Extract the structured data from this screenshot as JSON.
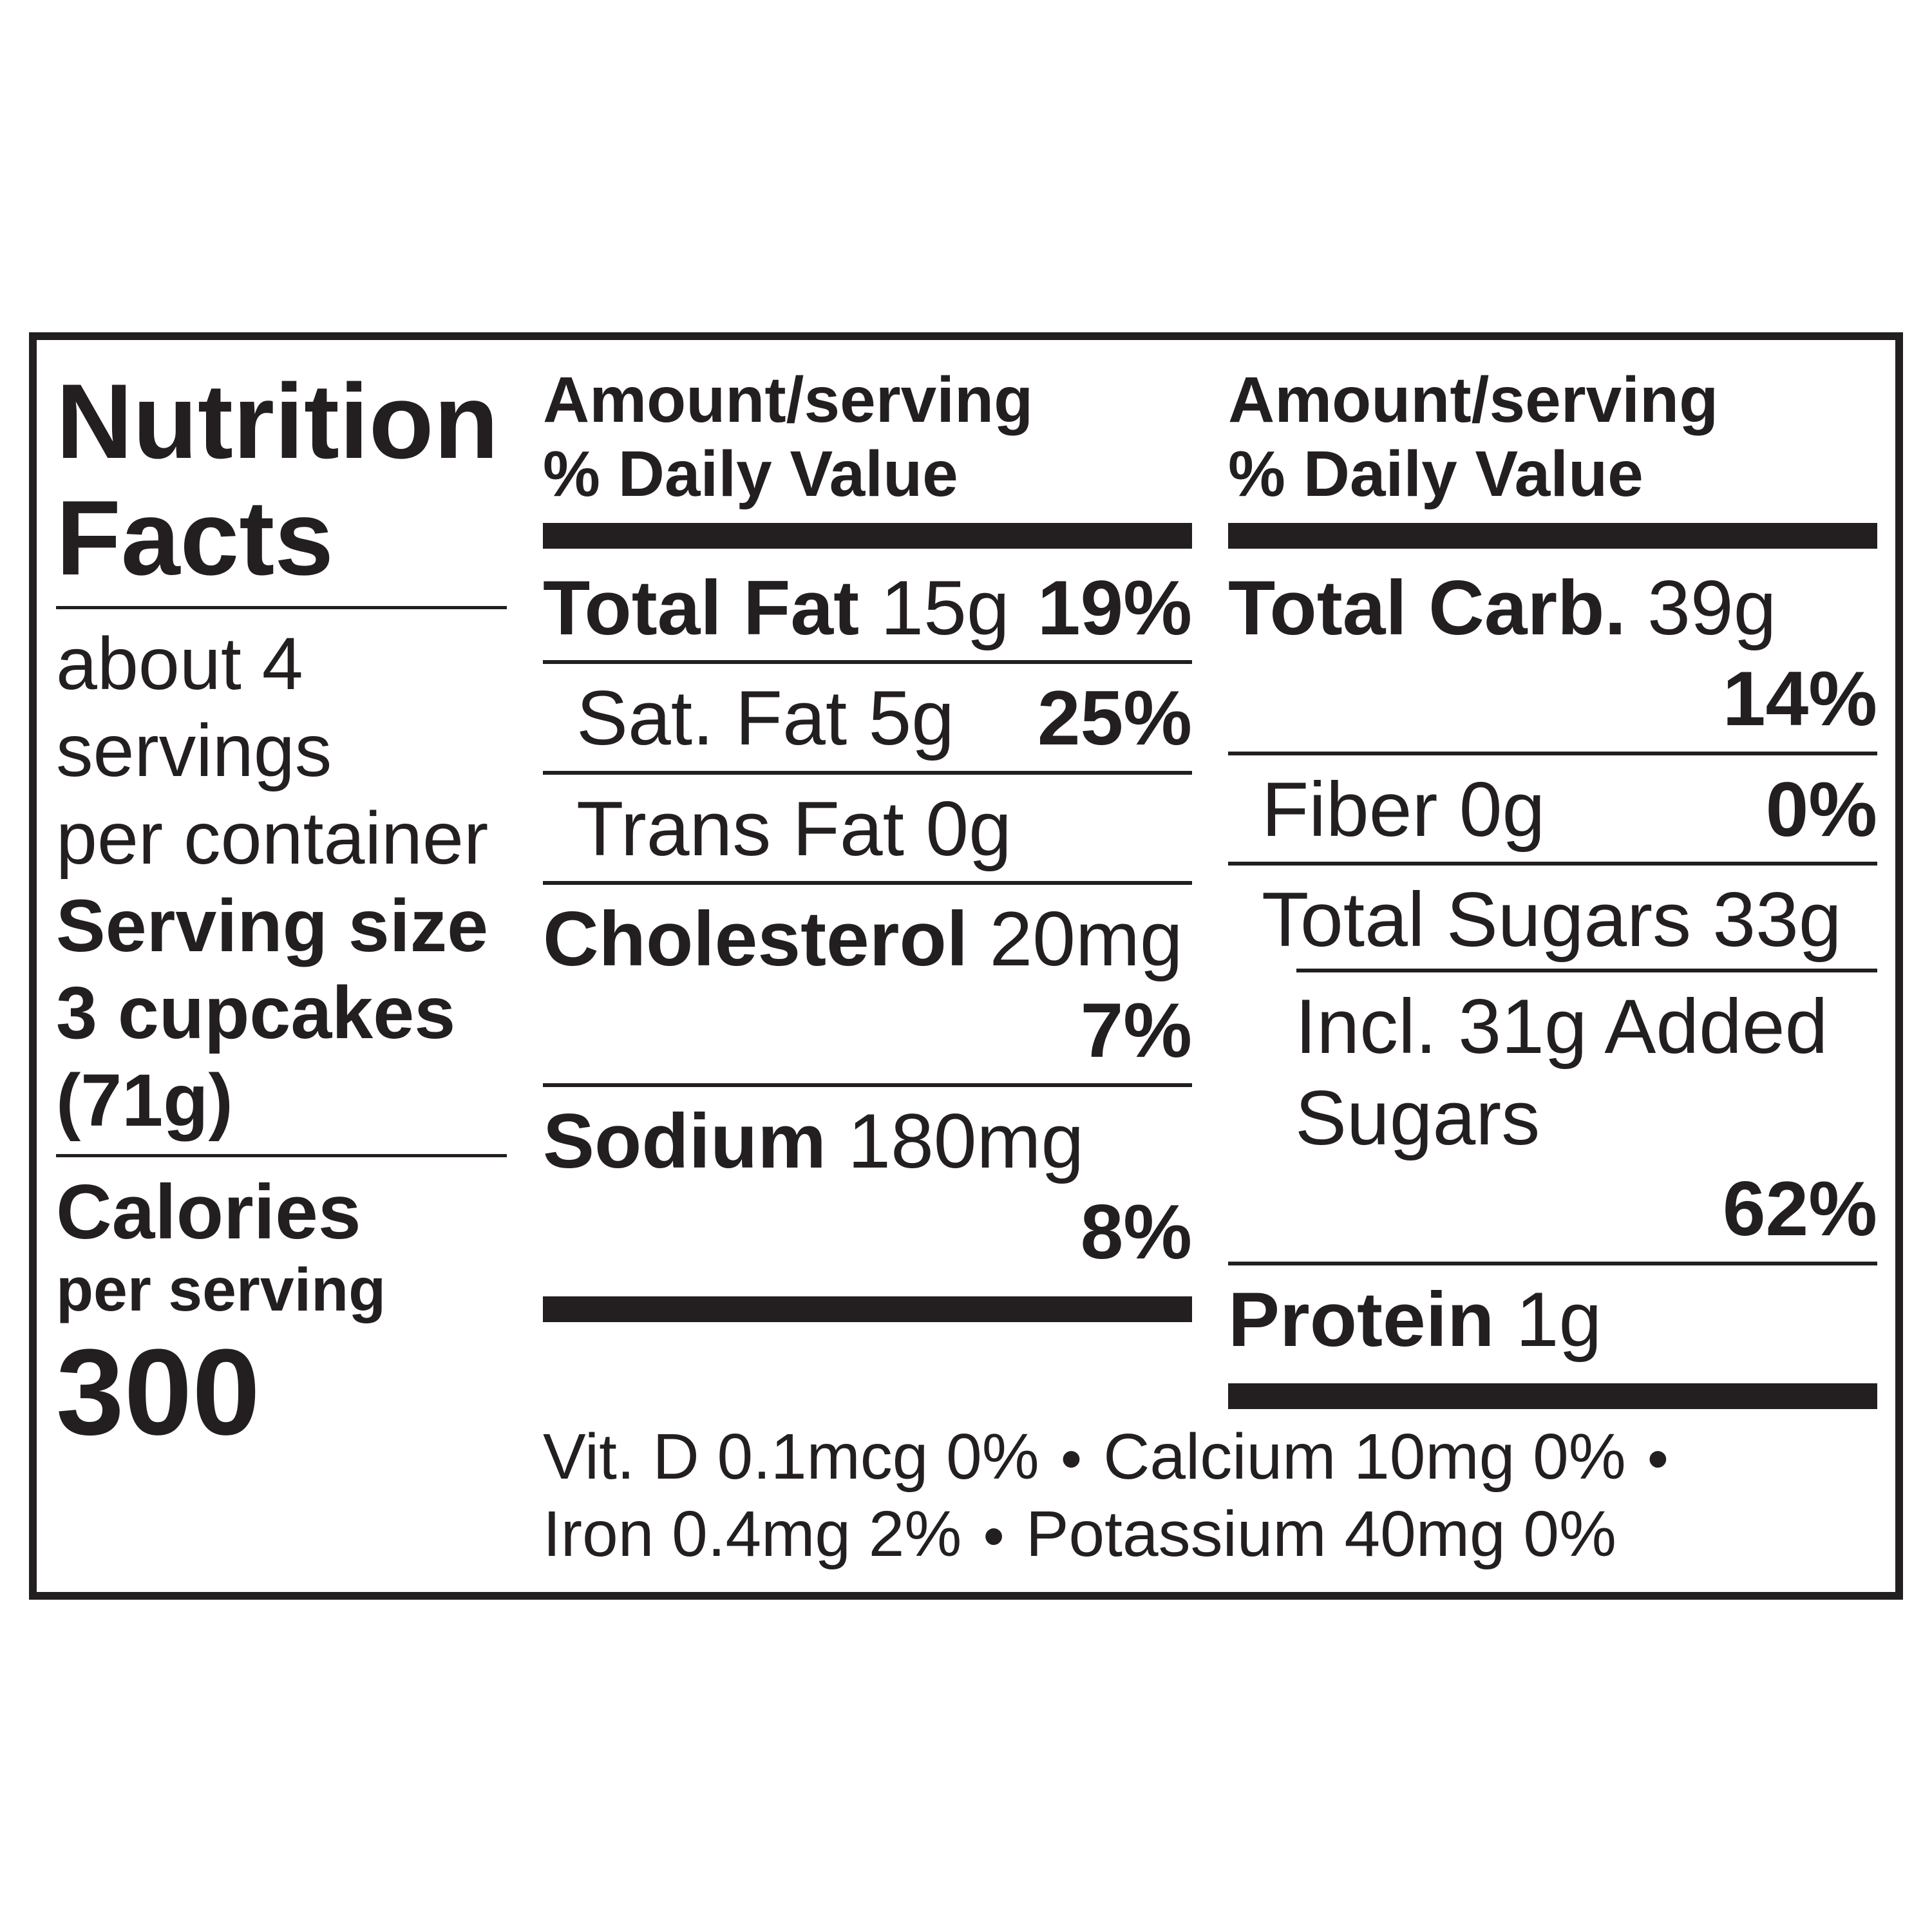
{
  "colors": {
    "ink": "#231f20",
    "background": "#ffffff"
  },
  "title": {
    "line1": "Nutrition",
    "line2": "Facts"
  },
  "servings": {
    "line1": "about 4 servings",
    "line2": "per container",
    "size_label": "Serving size",
    "size_value": "3 cupcakes (71g)"
  },
  "calories": {
    "label": "Calories",
    "sublabel": "per serving",
    "value": "300"
  },
  "columns": [
    {
      "header_amount": "Amount/serving",
      "header_dv": "% Daily Value",
      "rows": [
        {
          "label": "Total Fat",
          "amount": "15g",
          "dv": "19%"
        },
        {
          "text": "Sat. Fat 5g",
          "dv": "25%"
        },
        {
          "text": "Trans Fat 0g"
        },
        {
          "label": "Cholesterol",
          "amount": "20mg",
          "dv": "7%"
        },
        {
          "label": "Sodium",
          "amount": "180mg",
          "dv": "8%"
        }
      ]
    },
    {
      "header_amount": "Amount/serving",
      "header_dv": "% Daily Value",
      "rows": [
        {
          "label": "Total Carb.",
          "amount": "39g",
          "dv": "14%"
        },
        {
          "text": "Fiber 0g",
          "dv": "0%"
        },
        {
          "text": "Total Sugars 33g"
        },
        {
          "text": "Incl. 31g Added Sugars",
          "dv": "62%"
        },
        {
          "label": "Protein",
          "amount": "1g"
        }
      ]
    }
  ],
  "micronutrients": [
    {
      "text": "Vit. D 0.1mcg  0%"
    },
    {
      "text": "Calcium 10mg  0%"
    },
    {
      "text": "Iron 0.4mg 2%"
    },
    {
      "text": "Potassium 40mg 0%"
    }
  ],
  "separator": "•"
}
